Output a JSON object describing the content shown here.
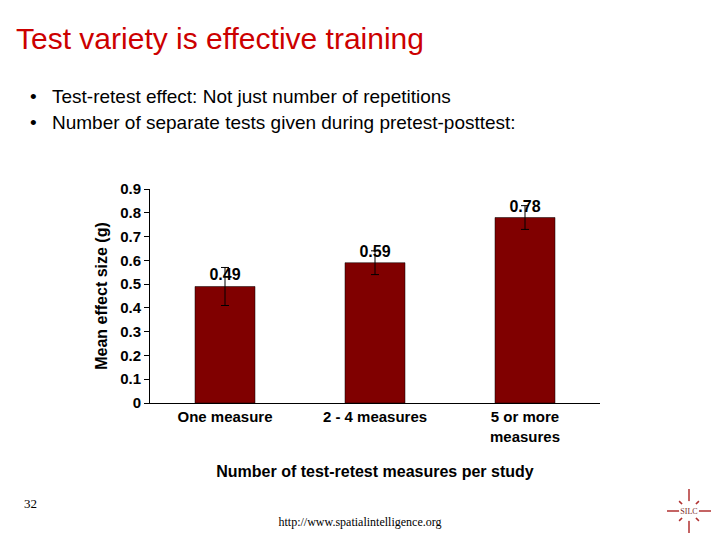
{
  "slide": {
    "title": "Test variety is effective training",
    "bullets": [
      "Test-retest effect:  Not just number of repetitions",
      "Number of separate tests given during pretest-posttest:"
    ],
    "page_number": "32",
    "url": "http://www.spatialintelligence.org",
    "logo": "SILC"
  },
  "chart_data": {
    "type": "bar",
    "categories": [
      "One measure",
      "2 - 4 measures",
      "5 or more measures"
    ],
    "values": [
      0.49,
      0.59,
      0.78
    ],
    "error": [
      0.08,
      0.05,
      0.05
    ],
    "color": "#800000",
    "x_label": "Number of test-retest measures per study",
    "y_label": "Mean effect size (g)",
    "ylim": [
      0,
      0.9
    ],
    "yticks": [
      0,
      0.1,
      0.2,
      0.3,
      0.4,
      0.5,
      0.6,
      0.7,
      0.8,
      0.9
    ],
    "data_labels": true,
    "grid": false
  }
}
